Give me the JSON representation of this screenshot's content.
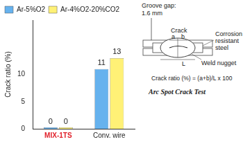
{
  "chart_data": {
    "type": "bar",
    "categories": [
      "MIX-1TS",
      "Conv. wire"
    ],
    "series": [
      {
        "name": "Ar-5%O2",
        "color": "#66b2ee",
        "values": [
          0,
          11
        ]
      },
      {
        "name": "Ar-4%O2-20%CO2",
        "color": "#fff176",
        "values": [
          0,
          13
        ]
      }
    ],
    "y_label": "Crack ratio (%)",
    "ylim": [
      0,
      20
    ],
    "yticks": [
      0,
      5,
      10
    ],
    "grid": false,
    "legend": "upper left",
    "data_labels": true
  },
  "diagram": {
    "groove_gap": [
      "Groove gap:",
      "1.6 mm"
    ],
    "crack": "Crack",
    "a": "a",
    "b": "b",
    "L": "L",
    "steel": [
      "Corrosion",
      "resistant",
      "steel"
    ],
    "nugget": "Weld nugget",
    "formula": "Crack ratio (%) = (a+b)/L x 100",
    "title": "Arc Spot Crack Test"
  }
}
